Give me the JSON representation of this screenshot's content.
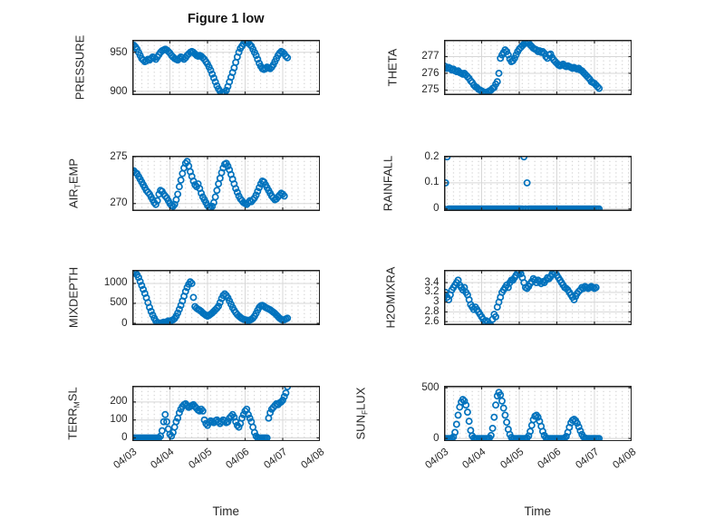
{
  "figure": {
    "title": "Figure 1 low",
    "background": "#ffffff"
  },
  "style_colors": {
    "marker": "#0072bd",
    "axis_box": "#222222",
    "tick": "#262626",
    "grid_major": "#d7d7d7",
    "grid_minor_dots": "#c9c9c9",
    "text": "#262626",
    "title_text": "#111111"
  },
  "time_axis": {
    "xlabel": "Time",
    "tick_labels": [
      "04/03",
      "04/04",
      "04/05",
      "04/06",
      "04/07",
      "04/08"
    ],
    "xlim_hours": [
      0,
      120
    ],
    "tick_step_hours": 24,
    "label_rotation_deg": -38,
    "grid": "on",
    "minor_grid": "dotted"
  },
  "chart_data": [
    {
      "name": "PRESSURE",
      "type": "scatter",
      "row": 0,
      "col": 0,
      "ylabel_parts": [
        {
          "t": "PRESSURE"
        }
      ],
      "ylim": [
        895,
        966
      ],
      "yticks": [
        {
          "v": 900,
          "label": "900"
        },
        {
          "v": 950,
          "label": "950"
        }
      ],
      "show_xticklabels": false,
      "x0_hours": 0,
      "dx_hours": 1,
      "values": [
        960,
        959,
        957,
        954,
        950,
        946,
        942,
        940,
        938,
        939,
        941,
        940,
        942,
        944,
        943,
        941,
        944,
        947,
        950,
        952,
        953,
        954,
        953,
        951,
        949,
        946,
        944,
        942,
        941,
        940,
        942,
        944,
        943,
        941,
        943,
        946,
        948,
        950,
        951,
        950,
        948,
        946,
        945,
        946,
        945,
        943,
        941,
        938,
        935,
        931,
        927,
        922,
        917,
        912,
        907,
        903,
        900,
        898,
        897,
        898,
        901,
        906,
        912,
        918,
        924,
        930,
        937,
        944,
        950,
        955,
        958,
        961,
        963,
        964,
        962,
        960,
        958,
        954,
        950,
        946,
        941,
        936,
        932,
        929,
        928,
        929,
        931,
        930,
        929,
        931,
        934,
        938,
        942,
        946,
        949,
        951,
        950,
        948,
        945,
        943
      ]
    },
    {
      "name": "THETA",
      "type": "scatter",
      "row": 0,
      "col": 1,
      "ylabel_parts": [
        {
          "t": "THETA"
        }
      ],
      "ylim": [
        274.7,
        278.0
      ],
      "yticks": [
        {
          "v": 275,
          "label": "275"
        },
        {
          "v": 276,
          "label": "276"
        },
        {
          "v": 277,
          "label": "277"
        }
      ],
      "show_xticklabels": false,
      "x0_hours": 0,
      "dx_hours": 1,
      "values": [
        276.45,
        276.4,
        276.3,
        276.35,
        276.3,
        276.2,
        276.25,
        276.15,
        276.1,
        276.15,
        276.05,
        276.0,
        275.95,
        276.0,
        275.9,
        275.8,
        275.7,
        275.55,
        275.45,
        275.3,
        275.2,
        275.15,
        275.05,
        275.0,
        274.95,
        274.9,
        274.85,
        274.85,
        274.9,
        274.95,
        275.0,
        275.1,
        275.15,
        275.35,
        275.5,
        276.0,
        276.9,
        277.1,
        277.25,
        277.4,
        277.3,
        277.1,
        276.85,
        276.7,
        276.75,
        276.9,
        277.1,
        277.3,
        277.45,
        277.55,
        277.65,
        277.75,
        277.8,
        277.85,
        277.8,
        277.7,
        277.6,
        277.5,
        277.45,
        277.4,
        277.3,
        277.35,
        277.25,
        277.3,
        277.2,
        277.0,
        276.9,
        277.1,
        277.15,
        276.95,
        276.8,
        276.7,
        276.6,
        276.5,
        276.45,
        276.5,
        276.55,
        276.45,
        276.4,
        276.45,
        276.4,
        276.35,
        276.3,
        276.35,
        276.3,
        276.25,
        276.3,
        276.2,
        276.15,
        276.05,
        275.95,
        275.85,
        275.75,
        275.65,
        275.5,
        275.45,
        275.4,
        275.3,
        275.2,
        275.1
      ]
    },
    {
      "name": "AIR_TEMP",
      "type": "scatter",
      "row": 1,
      "col": 0,
      "ylabel_parts": [
        {
          "t": "AIR"
        },
        {
          "t": "T",
          "sub": true
        },
        {
          "t": "EMP"
        }
      ],
      "ylim": [
        269.2,
        275.1
      ],
      "yticks": [
        {
          "v": 270,
          "label": "270"
        },
        {
          "v": 275,
          "label": "275"
        }
      ],
      "show_xticklabels": false,
      "x0_hours": 0,
      "dx_hours": 1,
      "values": [
        273.4,
        273.5,
        273.3,
        273.2,
        272.9,
        272.6,
        272.3,
        272.0,
        271.7,
        271.4,
        271.2,
        271.0,
        270.7,
        270.4,
        270.1,
        269.9,
        270.3,
        271.0,
        271.4,
        271.3,
        271.0,
        270.8,
        270.6,
        270.3,
        270.0,
        269.8,
        269.7,
        269.9,
        270.4,
        271.0,
        271.8,
        272.5,
        273.2,
        273.8,
        274.3,
        274.5,
        274.0,
        273.4,
        272.9,
        272.4,
        272.0,
        271.8,
        272.1,
        271.6,
        271.1,
        270.7,
        270.4,
        270.1,
        269.8,
        269.6,
        269.5,
        269.7,
        270.1,
        270.7,
        271.4,
        272.1,
        272.7,
        273.3,
        273.8,
        274.2,
        274.3,
        274.0,
        273.6,
        273.1,
        272.6,
        272.1,
        271.6,
        271.2,
        270.8,
        270.5,
        270.3,
        270.1,
        270.0,
        269.9,
        270.1,
        270.3,
        270.2,
        270.4,
        270.6,
        270.9,
        271.3,
        271.7,
        272.1,
        272.4,
        272.3,
        272.0,
        271.7,
        271.4,
        271.1,
        270.8,
        270.6,
        270.4,
        270.5,
        270.7,
        270.9,
        271.1,
        271.0,
        270.8
      ]
    },
    {
      "name": "RAINFALL",
      "type": "scatter",
      "row": 1,
      "col": 1,
      "ylabel_parts": [
        {
          "t": "RAINFALL"
        }
      ],
      "ylim": [
        -0.008,
        0.204
      ],
      "yticks": [
        {
          "v": 0,
          "label": "0"
        },
        {
          "v": 0.1,
          "label": "0.1"
        },
        {
          "v": 0.2,
          "label": "0.2"
        }
      ],
      "show_xticklabels": false,
      "x0_hours": 0,
      "dx_hours": 1,
      "values": [
        0,
        0.1,
        0.2,
        0,
        0,
        0,
        0,
        0,
        0,
        0,
        0,
        0,
        0,
        0,
        0,
        0,
        0,
        0,
        0,
        0,
        0,
        0,
        0,
        0,
        0,
        0,
        0,
        0,
        0,
        0,
        0,
        0,
        0,
        0,
        0,
        0,
        0,
        0,
        0,
        0,
        0,
        0,
        0,
        0,
        0,
        0,
        0,
        0,
        0,
        0,
        0,
        0.2,
        0,
        0.1,
        0,
        0,
        0,
        0,
        0,
        0,
        0,
        0,
        0,
        0,
        0,
        0,
        0,
        0,
        0,
        0,
        0,
        0,
        0,
        0,
        0,
        0,
        0,
        0,
        0,
        0,
        0,
        0,
        0,
        0,
        0,
        0,
        0,
        0,
        0,
        0,
        0,
        0,
        0,
        0,
        0,
        0,
        0,
        0,
        0,
        0
      ]
    },
    {
      "name": "MIXDEPTH",
      "type": "scatter",
      "row": 2,
      "col": 0,
      "ylabel_parts": [
        {
          "t": "MIXDEPTH"
        }
      ],
      "ylim": [
        -45,
        1340
      ],
      "yticks": [
        {
          "v": 0,
          "label": "0"
        },
        {
          "v": 500,
          "label": "500"
        },
        {
          "v": 1000,
          "label": "1000"
        }
      ],
      "show_xticklabels": false,
      "x0_hours": 0,
      "dx_hours": 1,
      "values": [
        1250,
        1300,
        1280,
        1220,
        1150,
        1050,
        950,
        850,
        750,
        640,
        520,
        400,
        300,
        210,
        130,
        60,
        20,
        10,
        0,
        15,
        30,
        20,
        40,
        60,
        50,
        70,
        90,
        120,
        180,
        260,
        350,
        450,
        560,
        680,
        800,
        900,
        980,
        1040,
        1000,
        650,
        420,
        380,
        350,
        330,
        300,
        260,
        230,
        200,
        180,
        200,
        230,
        260,
        300,
        340,
        380,
        430,
        520,
        620,
        700,
        740,
        700,
        640,
        560,
        480,
        400,
        330,
        270,
        220,
        180,
        150,
        120,
        100,
        90,
        80,
        70,
        80,
        100,
        130,
        180,
        250,
        330,
        400,
        440,
        450,
        430,
        400,
        380,
        360,
        340,
        310,
        280,
        250,
        210,
        170,
        130,
        100,
        80,
        90,
        110,
        130
      ]
    },
    {
      "name": "H2OMIXRA",
      "type": "scatter",
      "row": 2,
      "col": 1,
      "ylabel_parts": [
        {
          "t": "H2OMIXRA"
        }
      ],
      "ylim": [
        2.53,
        3.66
      ],
      "yticks": [
        {
          "v": 2.6,
          "label": "2.6"
        },
        {
          "v": 2.8,
          "label": "2.8"
        },
        {
          "v": 3,
          "label": "3"
        },
        {
          "v": 3.2,
          "label": "3.2"
        },
        {
          "v": 3.4,
          "label": "3.4"
        }
      ],
      "show_xticklabels": false,
      "x0_hours": 0,
      "dx_hours": 1,
      "values": [
        3.15,
        3.2,
        3.1,
        3.05,
        3.15,
        3.25,
        3.3,
        3.35,
        3.4,
        3.45,
        3.35,
        3.3,
        3.25,
        3.3,
        3.2,
        3.15,
        3.05,
        2.95,
        2.9,
        2.85,
        2.9,
        2.85,
        2.8,
        2.75,
        2.7,
        2.65,
        2.6,
        2.62,
        2.6,
        2.55,
        2.52,
        2.65,
        2.75,
        2.7,
        2.9,
        3.0,
        3.1,
        3.2,
        3.25,
        3.3,
        3.35,
        3.3,
        3.4,
        3.45,
        3.45,
        3.5,
        3.55,
        3.6,
        3.62,
        3.58,
        3.5,
        3.4,
        3.3,
        3.28,
        3.32,
        3.38,
        3.42,
        3.48,
        3.45,
        3.4,
        3.45,
        3.42,
        3.38,
        3.42,
        3.4,
        3.45,
        3.5,
        3.48,
        3.52,
        3.58,
        3.62,
        3.6,
        3.55,
        3.5,
        3.45,
        3.4,
        3.35,
        3.3,
        3.28,
        3.25,
        3.2,
        3.15,
        3.1,
        3.05,
        3.12,
        3.18,
        3.22,
        3.25,
        3.3,
        3.28,
        3.32,
        3.3,
        3.28,
        3.3,
        3.32,
        3.3,
        3.28,
        3.3
      ]
    },
    {
      "name": "TERR_MSL",
      "type": "scatter",
      "row": 3,
      "col": 0,
      "ylabel_parts": [
        {
          "t": "TERR"
        },
        {
          "t": "M",
          "sub": true
        },
        {
          "t": "SL"
        }
      ],
      "ylim": [
        -20,
        290
      ],
      "yticks": [
        {
          "v": 0,
          "label": "0"
        },
        {
          "v": 100,
          "label": "100"
        },
        {
          "v": 200,
          "label": "200"
        }
      ],
      "show_xticklabels": true,
      "x0_hours": 0,
      "dx_hours": 1,
      "values": [
        0,
        0,
        0,
        0,
        0,
        0,
        0,
        0,
        0,
        0,
        0,
        0,
        0,
        0,
        0,
        0,
        0,
        0,
        10,
        40,
        90,
        130,
        90,
        50,
        20,
        10,
        30,
        60,
        90,
        110,
        140,
        160,
        175,
        185,
        190,
        180,
        170,
        175,
        180,
        185,
        175,
        165,
        155,
        150,
        160,
        150,
        100,
        80,
        70,
        85,
        95,
        90,
        85,
        95,
        100,
        90,
        80,
        90,
        100,
        95,
        85,
        90,
        110,
        120,
        130,
        115,
        90,
        70,
        60,
        80,
        110,
        130,
        150,
        160,
        130,
        110,
        90,
        60,
        30,
        10,
        0,
        0,
        0,
        0,
        0,
        0,
        0,
        110,
        140,
        160,
        170,
        180,
        190,
        185,
        195,
        200,
        210,
        230,
        250,
        285
      ]
    },
    {
      "name": "SUN_FLUX",
      "type": "scatter",
      "row": 3,
      "col": 1,
      "ylabel_parts": [
        {
          "t": "SUN"
        },
        {
          "t": "F",
          "sub": true
        },
        {
          "t": "LUX"
        }
      ],
      "ylim": [
        -30,
        520
      ],
      "yticks": [
        {
          "v": 0,
          "label": "0"
        },
        {
          "v": 500,
          "label": "500"
        }
      ],
      "show_xticklabels": true,
      "x0_hours": 0,
      "dx_hours": 1,
      "values": [
        0,
        0,
        0,
        0,
        0,
        2,
        15,
        60,
        140,
        230,
        310,
        360,
        385,
        370,
        330,
        260,
        170,
        80,
        25,
        5,
        0,
        0,
        0,
        0,
        0,
        0,
        0,
        0,
        0,
        5,
        30,
        100,
        210,
        330,
        420,
        455,
        430,
        370,
        300,
        230,
        160,
        90,
        40,
        10,
        0,
        0,
        0,
        0,
        0,
        0,
        0,
        0,
        0,
        5,
        25,
        70,
        130,
        185,
        220,
        230,
        210,
        170,
        120,
        70,
        30,
        8,
        0,
        0,
        0,
        0,
        0,
        0,
        0,
        0,
        0,
        0,
        0,
        5,
        20,
        60,
        110,
        155,
        180,
        190,
        175,
        150,
        115,
        75,
        40,
        15,
        5,
        0,
        0,
        0,
        0,
        0,
        0,
        0,
        0,
        0
      ]
    }
  ]
}
